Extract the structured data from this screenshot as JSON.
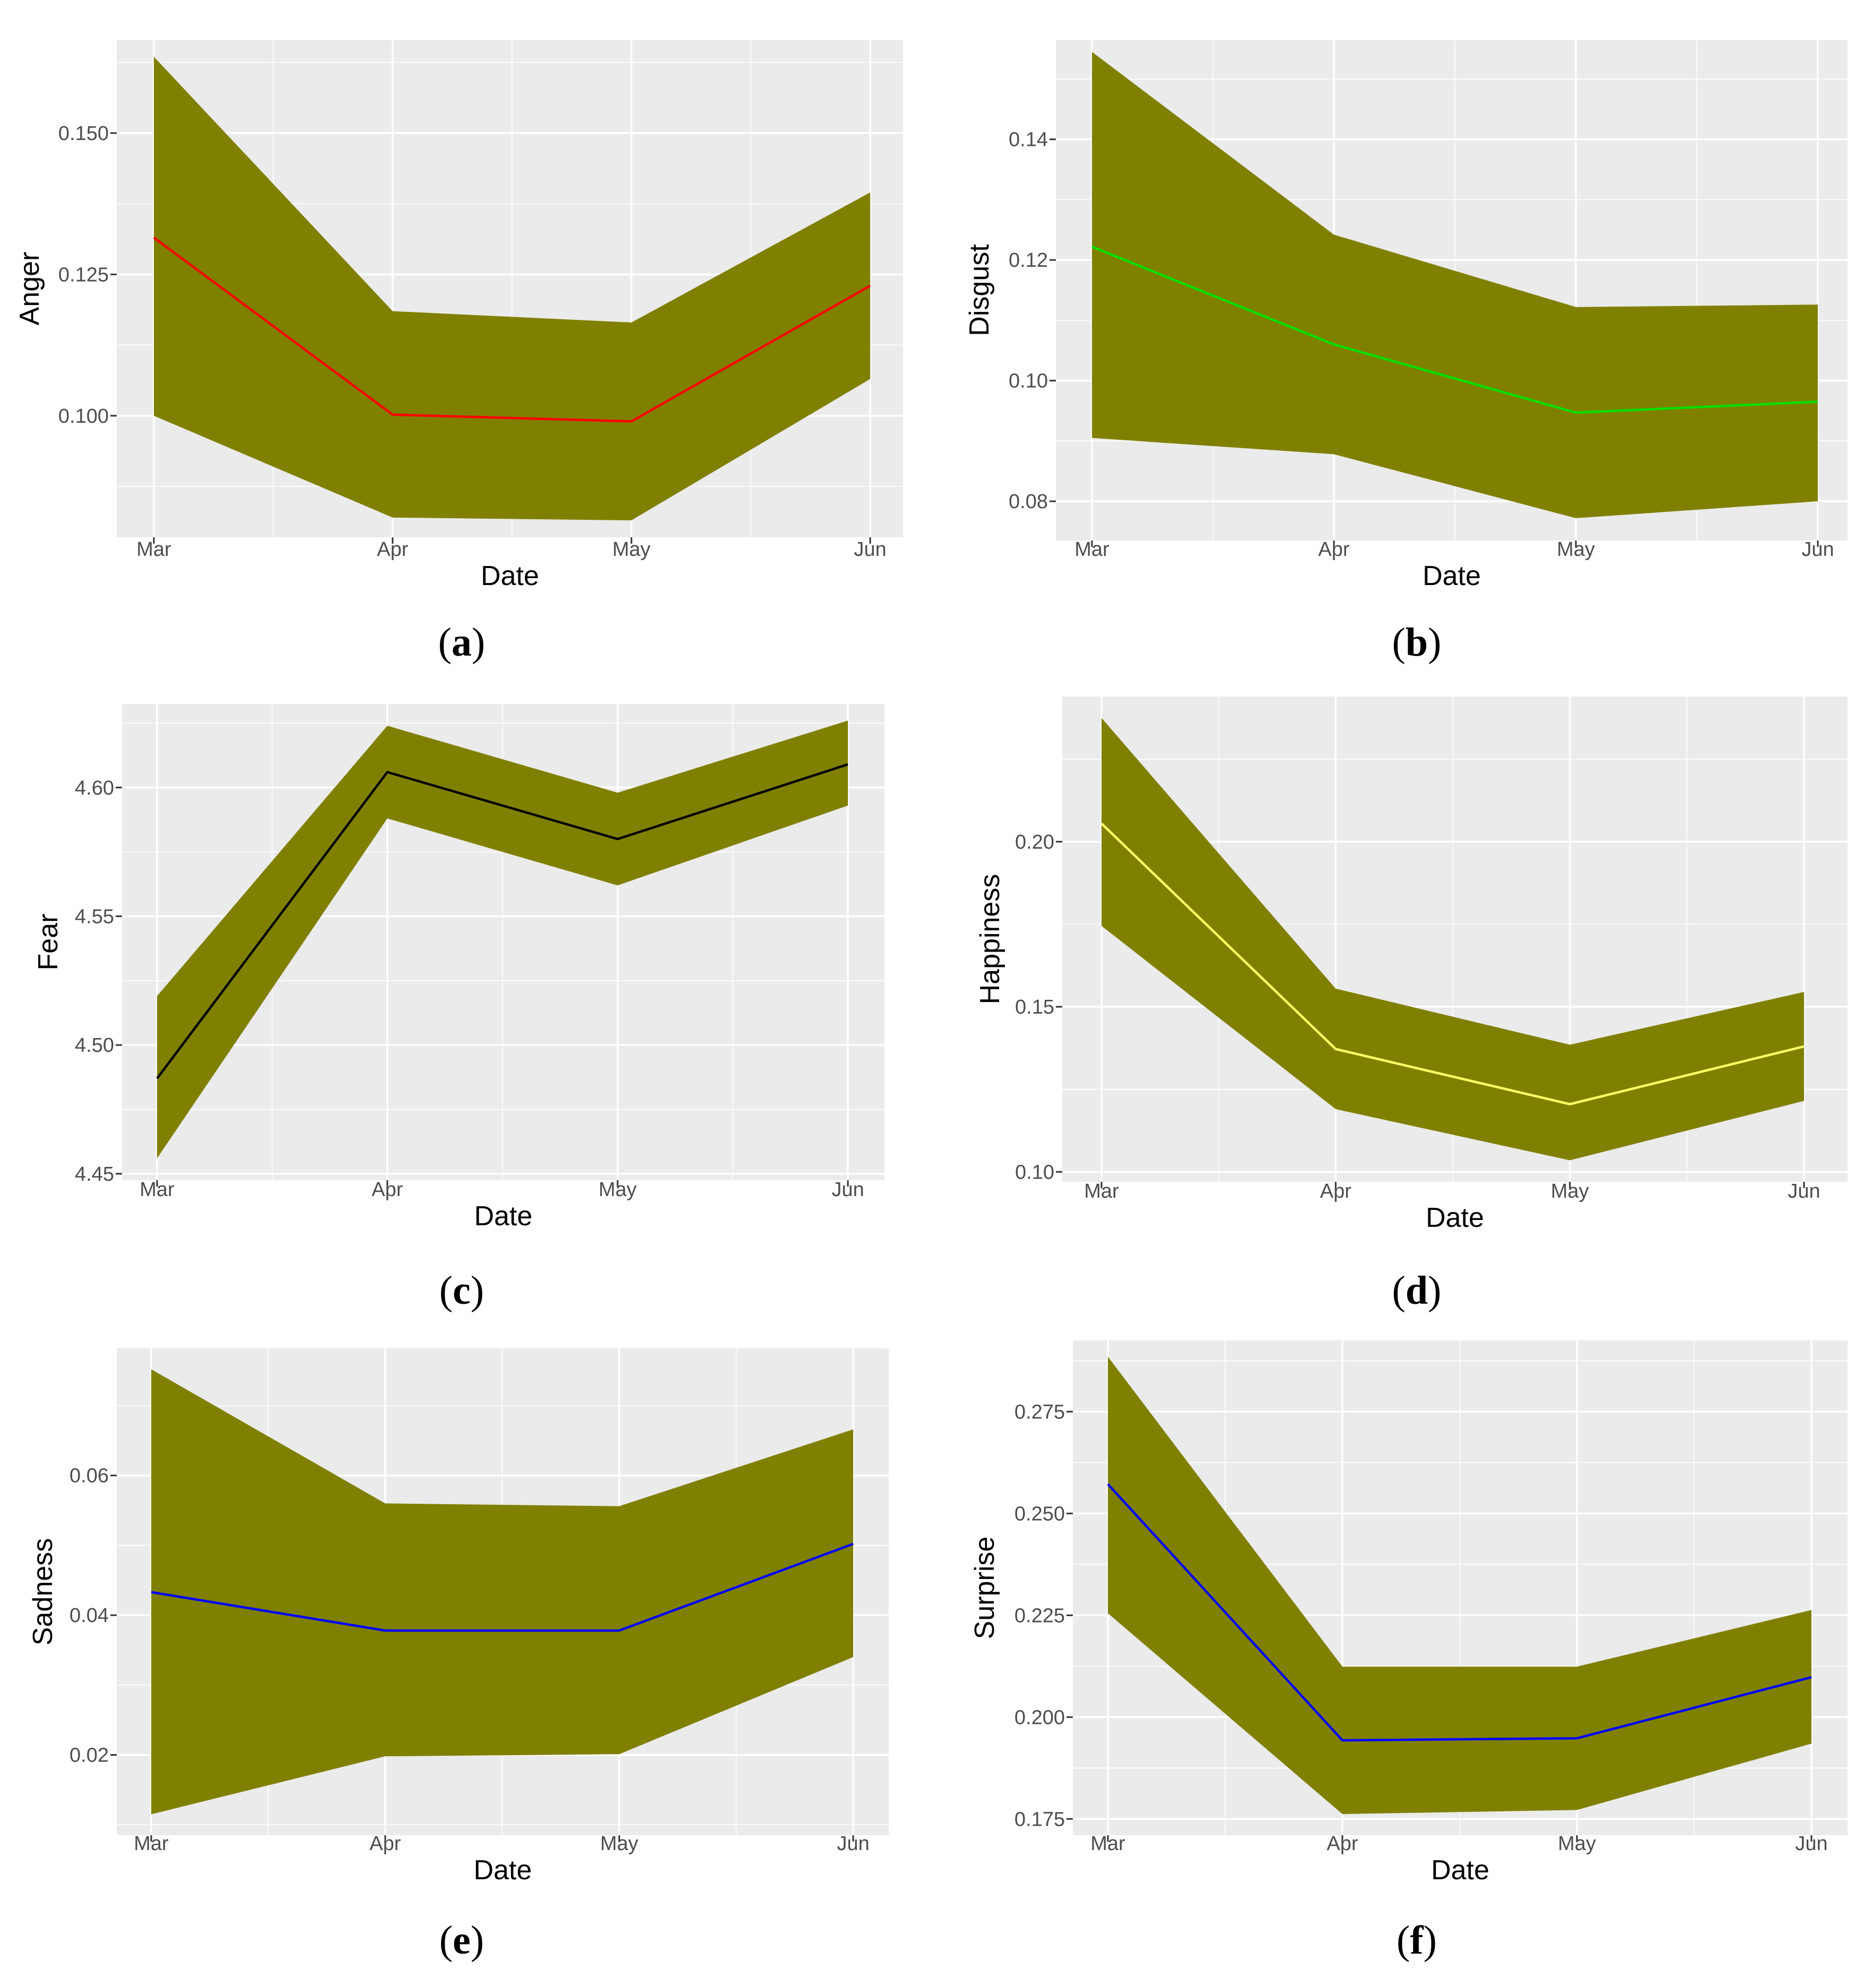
{
  "chart_data": [
    {
      "id": "a",
      "type": "area",
      "caption": "a",
      "xlabel": "Date",
      "ylabel": "Anger",
      "categories": [
        "Mar",
        "Apr",
        "May",
        "Jun"
      ],
      "series": [
        {
          "mean": [
            0.1315,
            0.1002,
            0.099,
            0.123
          ],
          "lower": [
            0.1,
            0.082,
            0.0815,
            0.1065
          ],
          "upper": [
            0.1635,
            0.1185,
            0.1165,
            0.1395
          ],
          "line_color": "#ff0000",
          "fill_color": "#808000"
        }
      ],
      "ylim": [
        0.0785,
        0.1665
      ],
      "yticks": [
        0.1,
        0.125,
        0.15
      ],
      "ytick_labels": [
        "0.100",
        "0.125",
        "0.150"
      ],
      "grid": true
    },
    {
      "id": "b",
      "type": "area",
      "caption": "b",
      "xlabel": "Date",
      "ylabel": "Disgust",
      "categories": [
        "Mar",
        "Apr",
        "May",
        "Jun"
      ],
      "series": [
        {
          "mean": [
            0.1222,
            0.106,
            0.0947,
            0.0965
          ],
          "lower": [
            0.0905,
            0.0878,
            0.0772,
            0.08
          ],
          "upper": [
            0.1545,
            0.1242,
            0.1122,
            0.1126
          ],
          "line_color": "#00e000",
          "fill_color": "#808000"
        }
      ],
      "ylim": [
        0.0735,
        0.1565
      ],
      "yticks": [
        0.08,
        0.1,
        0.12,
        0.14
      ],
      "ytick_labels": [
        "0.08",
        "0.10",
        "0.12",
        "0.14"
      ],
      "grid": true
    },
    {
      "id": "c",
      "type": "area",
      "caption": "c",
      "xlabel": "Date",
      "ylabel": "Fear",
      "categories": [
        "Mar",
        "Apr",
        "May",
        "Jun"
      ],
      "series": [
        {
          "mean": [
            4.487,
            4.606,
            4.58,
            4.609
          ],
          "lower": [
            4.456,
            4.588,
            4.562,
            4.593
          ],
          "upper": [
            4.519,
            4.624,
            4.598,
            4.626
          ],
          "line_color": "#000000",
          "fill_color": "#808000"
        }
      ],
      "ylim": [
        4.4475,
        4.6325
      ],
      "yticks": [
        4.45,
        4.5,
        4.55,
        4.6
      ],
      "ytick_labels": [
        "4.45",
        "4.50",
        "4.55",
        "4.60"
      ],
      "grid": true
    },
    {
      "id": "d",
      "type": "area",
      "caption": "d",
      "xlabel": "Date",
      "ylabel": "Happiness",
      "categories": [
        "Mar",
        "Apr",
        "May",
        "Jun"
      ],
      "series": [
        {
          "mean": [
            0.2055,
            0.1372,
            0.1205,
            0.138
          ],
          "lower": [
            0.1745,
            0.119,
            0.1035,
            0.1215
          ],
          "upper": [
            0.2375,
            0.1555,
            0.1385,
            0.1545
          ],
          "line_color": "#ffff66",
          "fill_color": "#808000"
        }
      ],
      "ylim": [
        0.097,
        0.244
      ],
      "yticks": [
        0.1,
        0.15,
        0.2
      ],
      "ytick_labels": [
        "0.10",
        "0.15",
        "0.20"
      ],
      "grid": true
    },
    {
      "id": "e",
      "type": "area",
      "caption": "e",
      "xlabel": "Date",
      "ylabel": "Sadness",
      "categories": [
        "Mar",
        "Apr",
        "May",
        "Jun"
      ],
      "series": [
        {
          "mean": [
            0.0433,
            0.0378,
            0.0378,
            0.0502
          ],
          "lower": [
            0.0115,
            0.0198,
            0.0201,
            0.034
          ],
          "upper": [
            0.0752,
            0.056,
            0.0556,
            0.0666
          ],
          "line_color": "#0000ff",
          "fill_color": "#808000"
        }
      ],
      "ylim": [
        0.0085,
        0.0782
      ],
      "yticks": [
        0.02,
        0.04,
        0.06
      ],
      "ytick_labels": [
        "0.02",
        "0.04",
        "0.06"
      ],
      "grid": true
    },
    {
      "id": "f",
      "type": "area",
      "caption": "f",
      "xlabel": "Date",
      "ylabel": "Surprise",
      "categories": [
        "Mar",
        "Apr",
        "May",
        "Jun"
      ],
      "series": [
        {
          "mean": [
            0.2572,
            0.1943,
            0.1948,
            0.2098
          ],
          "lower": [
            0.2255,
            0.1762,
            0.1772,
            0.1935
          ],
          "upper": [
            0.2885,
            0.2124,
            0.2124,
            0.2263
          ],
          "line_color": "#0000ff",
          "fill_color": "#808000"
        }
      ],
      "ylim": [
        0.171,
        0.2925
      ],
      "yticks": [
        0.175,
        0.2,
        0.225,
        0.25,
        0.275
      ],
      "ytick_labels": [
        "0.175",
        "0.200",
        "0.225",
        "0.250",
        "0.275"
      ],
      "grid": true
    }
  ]
}
